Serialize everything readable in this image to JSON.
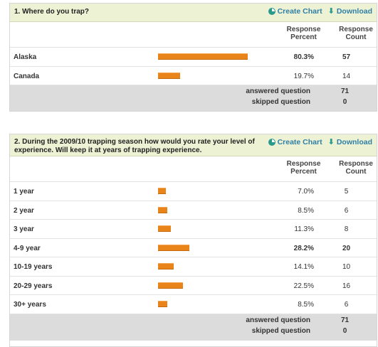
{
  "headers": {
    "response_percent": "Response Percent",
    "response_count": "Response Count"
  },
  "actions": {
    "create_chart": "Create Chart",
    "download": "Download"
  },
  "questions": [
    {
      "title": "1. Where do you trap?",
      "rows": [
        {
          "label": "Alaska",
          "percent": "80.3%",
          "count": "57",
          "fraction": 0.803,
          "highlight": true
        },
        {
          "label": "Canada",
          "percent": "19.7%",
          "count": "14",
          "fraction": 0.197,
          "highlight": false
        }
      ],
      "answered_label": "answered question",
      "answered": "71",
      "skipped_label": "skipped question",
      "skipped": "0"
    },
    {
      "title": "2. During the 2009/10 trapping season how would you rate your level of experience. Will keep it at years of trapping experience.",
      "rows": [
        {
          "label": "1 year",
          "percent": "7.0%",
          "count": "5",
          "fraction": 0.07,
          "highlight": false
        },
        {
          "label": "2 year",
          "percent": "8.5%",
          "count": "6",
          "fraction": 0.085,
          "highlight": false
        },
        {
          "label": "3 year",
          "percent": "11.3%",
          "count": "8",
          "fraction": 0.113,
          "highlight": false
        },
        {
          "label": "4-9 year",
          "percent": "28.2%",
          "count": "20",
          "fraction": 0.282,
          "highlight": true
        },
        {
          "label": "10-19 years",
          "percent": "14.1%",
          "count": "10",
          "fraction": 0.141,
          "highlight": false
        },
        {
          "label": "20-29 years",
          "percent": "22.5%",
          "count": "16",
          "fraction": 0.225,
          "highlight": false
        },
        {
          "label": "30+ years",
          "percent": "8.5%",
          "count": "6",
          "fraction": 0.085,
          "highlight": false
        }
      ],
      "answered_label": "answered question",
      "answered": "71",
      "skipped_label": "skipped question",
      "skipped": "0"
    }
  ],
  "colors": {
    "bar": "#e8841a",
    "header_bg": "#eef2d4",
    "link": "#2f7fa6",
    "summary_bg": "#dcdcdc"
  }
}
